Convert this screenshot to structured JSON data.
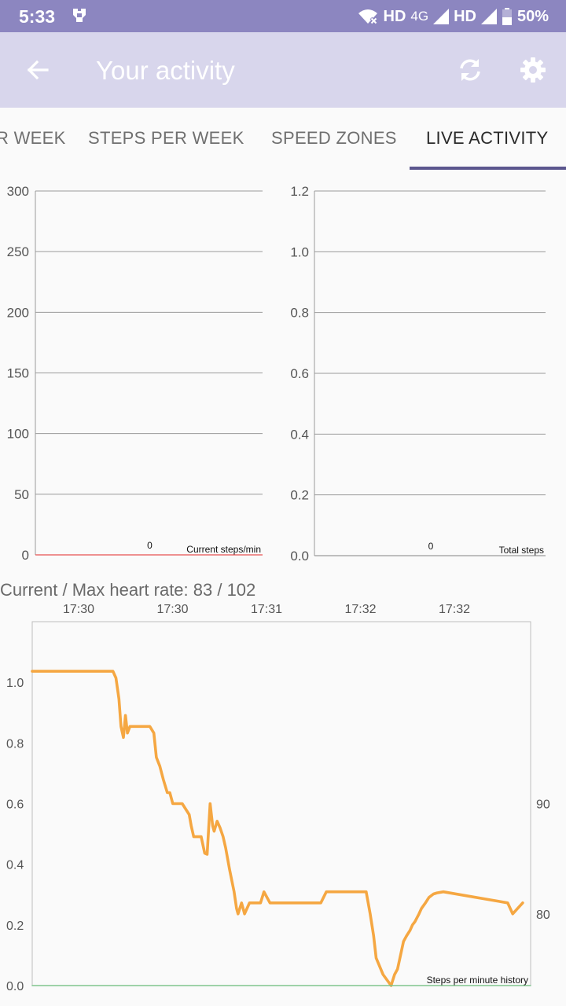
{
  "status_bar": {
    "time": "5:33",
    "network_hd_1": "HD",
    "network_4g": "4G",
    "network_hd_2": "HD",
    "battery": "50%",
    "icons": [
      "notification-icon",
      "wifi-off-icon",
      "signal-icon",
      "battery-icon"
    ]
  },
  "app_bar": {
    "title": "Your activity",
    "colors": {
      "app_bar": "#d8d6ec",
      "status_bar": "#8c86c0"
    }
  },
  "tabs": [
    {
      "label": "STEPS PER WEEK",
      "partial": "R WEEK",
      "active": false
    },
    {
      "label": "STEPS PER WEEK",
      "active": false
    },
    {
      "label": "SPEED ZONES",
      "active": false
    },
    {
      "label": "LIVE ACTIVITY",
      "active": true
    }
  ],
  "heart_rate_text": "Current / Max heart rate: 83 / 102",
  "chart_data": [
    {
      "type": "bar",
      "categories": [
        ""
      ],
      "values": [
        0
      ],
      "legend": "Current steps/min",
      "ylim": [
        0,
        300
      ],
      "yticks": [
        "300",
        "250",
        "200",
        "150",
        "100",
        "50",
        "0"
      ],
      "value_label": "0"
    },
    {
      "type": "bar",
      "categories": [
        ""
      ],
      "values": [
        0
      ],
      "legend": "Total steps",
      "ylim": [
        0,
        1.2
      ],
      "yticks": [
        "1.2",
        "1.0",
        "0.8",
        "0.6",
        "0.4",
        "0.2",
        "0.0"
      ],
      "value_label": "0"
    },
    {
      "type": "line",
      "legend": "Steps per minute history",
      "xticks": [
        "17:30",
        "17:30",
        "17:31",
        "17:32",
        "17:32"
      ],
      "yticks_left": [
        "1.0",
        "0.8",
        "0.6",
        "0.4",
        "0.2",
        "0.0"
      ],
      "yticks_right": [
        "90",
        "80"
      ],
      "ylim_left": [
        0,
        1.2
      ],
      "ylim_right": [
        73.5,
        106.5
      ],
      "xlim": [
        0,
        100
      ],
      "series": [
        {
          "color": "#f5a742",
          "axis": "right",
          "x": [
            0,
            16.2,
            16.8,
            17.4,
            17.8,
            18.3,
            18.7,
            19.1,
            19.6,
            20.1,
            20.5,
            23.6,
            24.4,
            24.9,
            25.6,
            26.3,
            27.1,
            27.6,
            28.2,
            28.9,
            30.1,
            31.5,
            31.9,
            32.4,
            33.1,
            33.9,
            34.6,
            35.1,
            35.7,
            36.2,
            36.5,
            37.1,
            37.7,
            38.3,
            38.8,
            39.6,
            40.5,
            41.0,
            41.3,
            42.0,
            42.6,
            43.6,
            44.3,
            44.9,
            45.8,
            46.5,
            47.7,
            48.6,
            51.0,
            51.6,
            52.1,
            57.9,
            59.0,
            65.8,
            67.0,
            67.8,
            68.5,
            69.0,
            70.4,
            72.0,
            72.7,
            73.3,
            74.5,
            75.1,
            75.8,
            76.3,
            76.8,
            77.6,
            78.1,
            78.9,
            79.6,
            80.5,
            81.2,
            82.5,
            95.4,
            96.4,
            97.4,
            98.4
          ],
          "y": [
            102.0,
            102.0,
            101.4,
            99.5,
            97.0,
            96.0,
            98.0,
            96.4,
            97.0,
            97.0,
            97.0,
            97.0,
            96.4,
            94.2,
            93.4,
            92.2,
            91.0,
            91.0,
            90.0,
            90.0,
            90.0,
            89.0,
            88.0,
            87.0,
            87.0,
            87.0,
            85.5,
            85.4,
            90.0,
            88.0,
            87.5,
            88.4,
            87.8,
            87.0,
            86.0,
            84.0,
            82.0,
            80.5,
            80.0,
            81.0,
            80.0,
            81.0,
            81.0,
            81.0,
            81.0,
            82.0,
            81.0,
            81.0,
            81.0,
            81.0,
            81.0,
            81.0,
            82.0,
            82.0,
            82.0,
            80.0,
            78.0,
            76.0,
            74.5,
            73.5,
            74.5,
            75.0,
            77.5,
            78.0,
            78.5,
            79.0,
            79.3,
            80.0,
            80.5,
            81.0,
            81.5,
            81.8,
            81.9,
            82.0,
            81.0,
            80.0,
            80.5,
            81.0
          ]
        },
        {
          "color": "#7fc48d",
          "axis": "left",
          "x": [
            0,
            100
          ],
          "y": [
            0,
            0
          ]
        }
      ]
    }
  ]
}
